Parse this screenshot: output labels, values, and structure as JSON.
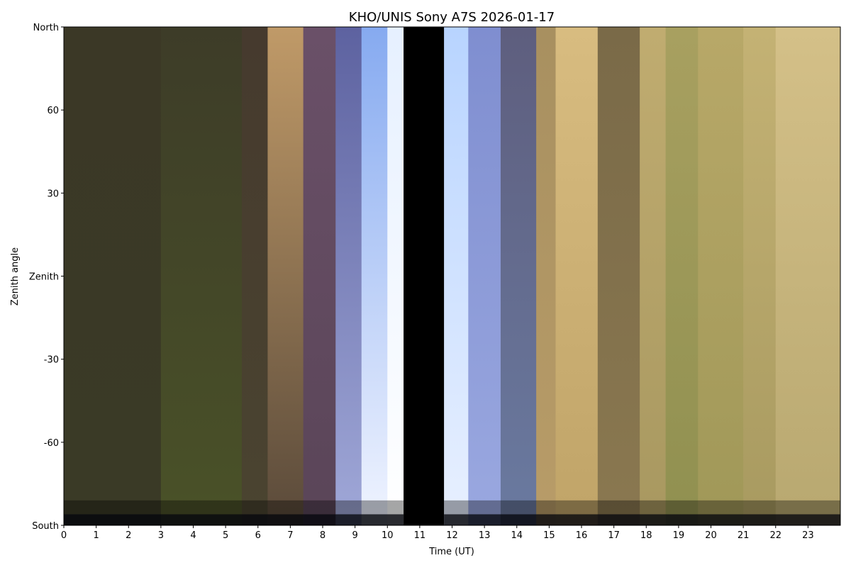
{
  "chart_data": {
    "type": "heatmap",
    "title": "KHO/UNIS Sony A7S 2026-01-17",
    "xlabel": "Time (UT)",
    "ylabel": "Zenith angle",
    "xlim": [
      0,
      24
    ],
    "ylim": [
      -90,
      90
    ],
    "x_ticks": [
      0,
      1,
      2,
      3,
      4,
      5,
      6,
      7,
      8,
      9,
      10,
      11,
      12,
      13,
      14,
      15,
      16,
      17,
      18,
      19,
      20,
      21,
      22,
      23
    ],
    "x_tick_labels": [
      "0",
      "1",
      "2",
      "3",
      "4",
      "5",
      "6",
      "7",
      "8",
      "9",
      "10",
      "11",
      "12",
      "13",
      "14",
      "15",
      "16",
      "17",
      "18",
      "19",
      "20",
      "21",
      "22",
      "23"
    ],
    "y_ticks": [
      90,
      60,
      30,
      0,
      -30,
      -60,
      -90
    ],
    "y_tick_labels": [
      "North",
      "60",
      "30",
      "Zenith",
      "-30",
      "-60",
      "South"
    ],
    "grid": false,
    "no_data_interval": [
      10.5,
      11.75
    ],
    "bands": [
      {
        "start": 0,
        "end": 3,
        "top": "#3b3826",
        "bottom": "#3a3a26"
      },
      {
        "start": 3,
        "end": 5.5,
        "top": "#3d3c28",
        "bottom": "#4a5228"
      },
      {
        "start": 5.5,
        "end": 6.3,
        "top": "#463a2e",
        "bottom": "#4a4430"
      },
      {
        "start": 6.3,
        "end": 7.4,
        "top": "#c09a68",
        "bottom": "#5a4a3a"
      },
      {
        "start": 7.4,
        "end": 8.4,
        "top": "#6a5068",
        "bottom": "#5a4558"
      },
      {
        "start": 8.4,
        "end": 9.2,
        "top": "#5d62a0",
        "bottom": "#a0a8d8"
      },
      {
        "start": 9.2,
        "end": 10,
        "top": "#86aaf0",
        "bottom": "#f0f4ff"
      },
      {
        "start": 10,
        "end": 10.5,
        "top": "#e6f0ff",
        "bottom": "#ffffff"
      },
      {
        "start": 10.5,
        "end": 11.75,
        "top": "#000000",
        "bottom": "#000000"
      },
      {
        "start": 11.75,
        "end": 12.5,
        "top": "#b8d4ff",
        "bottom": "#e8f0ff"
      },
      {
        "start": 12.5,
        "end": 13.5,
        "top": "#7f8ed0",
        "bottom": "#9aa8e0"
      },
      {
        "start": 13.5,
        "end": 14.6,
        "top": "#5e5e7e",
        "bottom": "#6a7aa0"
      },
      {
        "start": 14.6,
        "end": 15.2,
        "top": "#a89060",
        "bottom": "#b89c68"
      },
      {
        "start": 15.2,
        "end": 16.5,
        "top": "#d8bc80",
        "bottom": "#c0a468"
      },
      {
        "start": 16.5,
        "end": 17.8,
        "top": "#7a6a48",
        "bottom": "#8a7850"
      },
      {
        "start": 17.8,
        "end": 18.6,
        "top": "#c0ac70",
        "bottom": "#a89860"
      },
      {
        "start": 18.6,
        "end": 19.6,
        "top": "#a8a060",
        "bottom": "#909050"
      },
      {
        "start": 19.6,
        "end": 21,
        "top": "#b8a868",
        "bottom": "#a09858"
      },
      {
        "start": 21,
        "end": 22,
        "top": "#c4b274",
        "bottom": "#a89a60"
      },
      {
        "start": 22,
        "end": 24,
        "top": "#d4c088",
        "bottom": "#b8a870"
      }
    ]
  }
}
